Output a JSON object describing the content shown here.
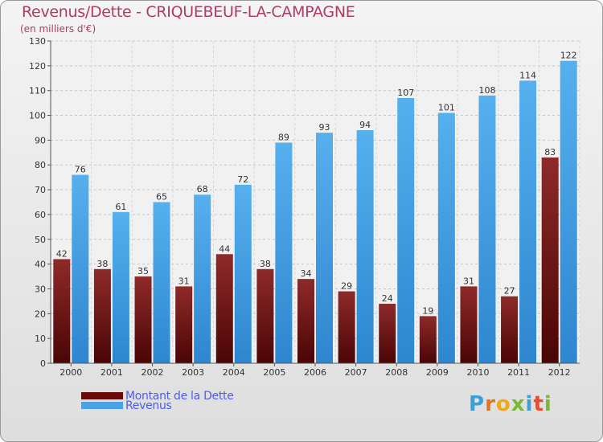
{
  "header": {
    "title": "Revenus/Dette - CRIQUEBEUF-LA-CAMPAGNE",
    "subtitle": "(en milliers d'€)"
  },
  "legend": {
    "items": [
      {
        "label": "Montant de la Dette",
        "color": "#7a1414"
      },
      {
        "label": "Revenus",
        "color": "#4aa3e6"
      }
    ]
  },
  "logo": {
    "text": "Proxiti",
    "letters": [
      "P",
      "r",
      "o",
      "x",
      "i",
      "t",
      "i"
    ]
  },
  "chart_data": {
    "type": "bar",
    "title": "Revenus/Dette - CRIQUEBEUF-LA-CAMPAGNE",
    "ylabel": "(en milliers d'€)",
    "xlabel": "",
    "categories": [
      "2000",
      "2001",
      "2002",
      "2003",
      "2004",
      "2005",
      "2006",
      "2007",
      "2008",
      "2009",
      "2010",
      "2011",
      "2012"
    ],
    "series": [
      {
        "name": "Montant de la Dette",
        "color": "#7a1414",
        "values": [
          42,
          38,
          35,
          31,
          44,
          38,
          34,
          29,
          24,
          19,
          31,
          27,
          83
        ]
      },
      {
        "name": "Revenus",
        "color": "#4aa3e6",
        "values": [
          76,
          61,
          65,
          68,
          72,
          89,
          93,
          94,
          107,
          101,
          108,
          114,
          122
        ]
      }
    ],
    "ylim": [
      0,
      130
    ],
    "yticks": [
      0,
      10,
      20,
      30,
      40,
      50,
      60,
      70,
      80,
      90,
      100,
      110,
      120,
      130
    ],
    "grid": true,
    "legend_position": "bottom-left"
  }
}
